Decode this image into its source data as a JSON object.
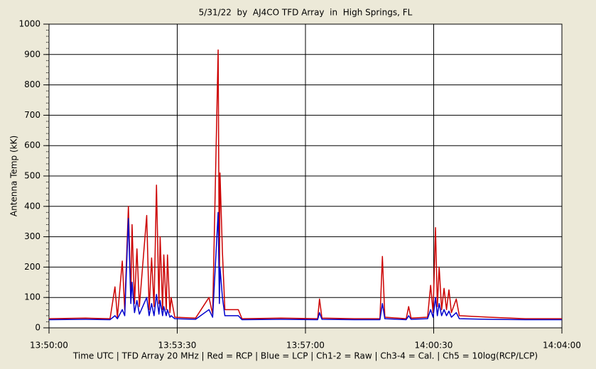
{
  "chart_data": {
    "type": "line",
    "title": "5/31/22  by  AJ4CO TFD Array  in  High Springs, FL",
    "y_label": "Antenna Temp (kK)",
    "x_label": "Time UTC | TFD Array 20 MHz | Red = RCP | Blue = LCP | Ch1-2 = Raw | Ch3-4 = Cal. | Ch5 = 10log(RCP/LCP)",
    "x": [
      "13:50:00",
      "13:51:00",
      "13:51:40",
      "13:51:48",
      "13:51:52",
      "13:52:00",
      "13:52:04",
      "13:52:10",
      "13:52:14",
      "13:52:16",
      "13:52:20",
      "13:52:24",
      "13:52:28",
      "13:52:40",
      "13:52:44",
      "13:52:48",
      "13:52:52",
      "13:52:56",
      "13:53:00",
      "13:53:02",
      "13:53:06",
      "13:53:08",
      "13:53:12",
      "13:53:14",
      "13:53:18",
      "13:53:20",
      "13:53:26",
      "13:54:00",
      "13:54:22",
      "13:54:28",
      "13:54:37",
      "13:54:39",
      "13:54:40",
      "13:54:42",
      "13:54:44",
      "13:54:48",
      "13:55:10",
      "13:55:16",
      "13:56:20",
      "13:57:20",
      "13:57:23",
      "13:57:27",
      "13:58:20",
      "13:59:02",
      "13:59:06",
      "13:59:10",
      "13:59:45",
      "13:59:49",
      "13:59:53",
      "14:00:20",
      "14:00:25",
      "14:00:29",
      "14:00:33",
      "14:00:36",
      "14:00:39",
      "14:00:43",
      "14:00:47",
      "14:00:51",
      "14:00:55",
      "14:00:59",
      "14:01:07",
      "14:01:12",
      "14:02:00",
      "14:03:00",
      "14:04:00"
    ],
    "series": [
      {
        "color": "#cc0000",
        "values": [
          30,
          32,
          30,
          135,
          35,
          220,
          60,
          400,
          100,
          340,
          80,
          260,
          70,
          370,
          60,
          230,
          70,
          470,
          80,
          300,
          60,
          240,
          60,
          240,
          50,
          100,
          35,
          32,
          100,
          45,
          915,
          120,
          510,
          380,
          250,
          60,
          60,
          30,
          32,
          30,
          95,
          32,
          30,
          30,
          235,
          35,
          30,
          70,
          32,
          35,
          140,
          50,
          330,
          70,
          200,
          60,
          130,
          60,
          125,
          50,
          95,
          40,
          35,
          30,
          30
        ]
      },
      {
        "color": "#0000cc",
        "values": [
          27,
          28,
          27,
          40,
          30,
          60,
          40,
          360,
          80,
          150,
          50,
          90,
          45,
          100,
          40,
          80,
          40,
          110,
          45,
          90,
          40,
          70,
          40,
          60,
          35,
          40,
          30,
          28,
          60,
          35,
          380,
          80,
          200,
          150,
          100,
          40,
          40,
          27,
          28,
          27,
          50,
          28,
          27,
          27,
          80,
          30,
          27,
          40,
          28,
          30,
          60,
          35,
          100,
          40,
          80,
          40,
          60,
          40,
          55,
          35,
          50,
          30,
          28,
          27,
          27
        ]
      }
    ],
    "xlim": [
      "13:50:00",
      "14:04:00"
    ],
    "xticks": [
      "13:50:00",
      "13:53:30",
      "13:57:00",
      "14:00:30",
      "14:04:00"
    ],
    "ylim": [
      0,
      1000
    ],
    "yticks": [
      0,
      100,
      200,
      300,
      400,
      500,
      600,
      700,
      800,
      900,
      1000
    ],
    "grid": true
  }
}
